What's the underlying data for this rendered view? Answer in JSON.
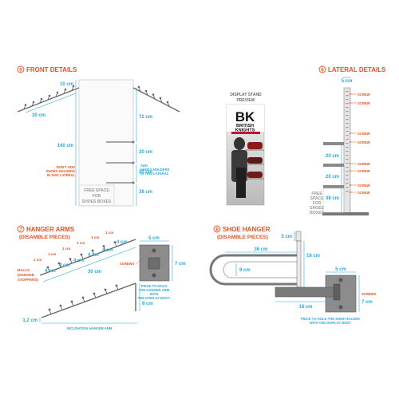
{
  "colors": {
    "accent": "#e8501f",
    "dimension": "#2aa8d8",
    "metal": "#6a6a6a"
  },
  "front": {
    "title": "FRONT DETAILS",
    "num": "5",
    "dims": {
      "top": "10 cm",
      "arm": "30 cm",
      "height": "140 cm",
      "seg1": "72 cm",
      "seg2": "20 cm",
      "seg3": "20 cm",
      "seg4": "38 cm"
    },
    "note_left": [
      "DON´T ADD",
      "SHOES HOLDERS",
      "IN THIS LATERAL"
    ],
    "note_right": [
      "ADD",
      "SHOES HOLDERS",
      "IN THIS LATERAL"
    ],
    "free_space": [
      "FREE SPACE",
      "FOR",
      "SHOES BOXES"
    ]
  },
  "preview": {
    "label": [
      "DISPLAY STAND",
      "PREVIEW"
    ],
    "logo": "BK",
    "brand": [
      "BRITISH",
      "KNIGHTS"
    ]
  },
  "lateral": {
    "title": "LATERAL DETAILS",
    "num": "6",
    "dims": {
      "top": "5 cm",
      "seg1": "20 cm",
      "seg2": "20 cm",
      "seg3": "38 cm"
    },
    "screw": "SCREW",
    "free_space": [
      "FREE",
      "SPACE",
      "FOR",
      "SHOES",
      "BOXES"
    ]
  },
  "hanger": {
    "title": "HANGER ARMS",
    "num": "7",
    "subtitle": "(DISAMBLE PIECES)",
    "spacing": "1 cm",
    "pitch": "4 cm",
    "length": "30 cm",
    "balls": [
      "BALLS",
      "(HANGER",
      "STOPPERS)"
    ],
    "screws": "SCREWS",
    "plate_w": "5 cm",
    "plate_h": "7 cm",
    "plate_note": [
      "PIECE TO HOLD",
      "THE HANGER ARM",
      "WITH",
      "THE DISPLAY BODY"
    ],
    "drop": "8 cm",
    "thick": "1,2 cm",
    "incl_label": "INCLINATION HANGER ARM"
  },
  "shoe": {
    "title": "SHOE HANGER",
    "num": "8",
    "subtitle": "(DISAMBLE PIECES)",
    "tab": "5 cm",
    "height": "18 cm",
    "length": "36 cm",
    "inner": "9 cm",
    "plate_w": "5 cm",
    "plate_h": "7 cm",
    "screws": "SCREWS",
    "arm": "18 cm",
    "note": [
      "PIECE TO HOLD THE SHOE HOLDER",
      "WITH THE DISPLAY BODY"
    ]
  }
}
